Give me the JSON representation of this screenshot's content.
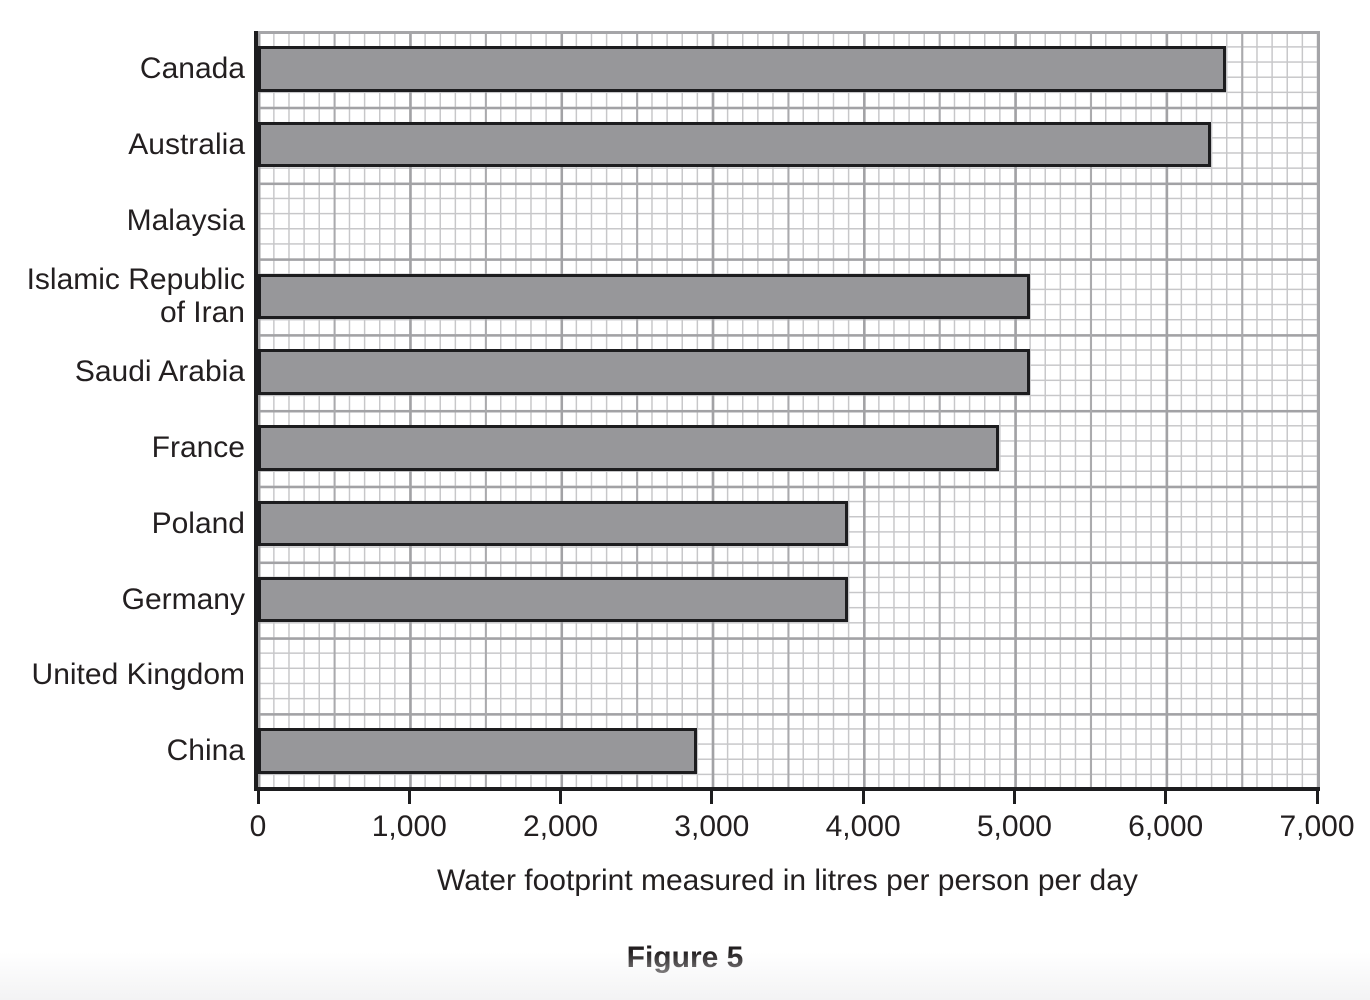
{
  "figure": {
    "caption": "Figure 5"
  },
  "chart_data": {
    "type": "bar",
    "orientation": "horizontal",
    "title": "",
    "xlabel": "Water footprint measured in litres per person per day",
    "ylabel": "",
    "categories": [
      "Canada",
      "Australia",
      "Malaysia",
      "Islamic Republic\nof Iran",
      "Saudi Arabia",
      "France",
      "Poland",
      "Germany",
      "United Kingdom",
      "China"
    ],
    "values": [
      6400,
      6300,
      0,
      5100,
      5100,
      4900,
      3900,
      3900,
      0,
      2900
    ],
    "empty_rows": [
      "Malaysia",
      "United Kingdom"
    ],
    "xlim": [
      0,
      7000
    ],
    "xticks": [
      0,
      1000,
      2000,
      3000,
      4000,
      5000,
      6000,
      7000
    ],
    "xtick_labels": [
      "0",
      "1,000",
      "2,000",
      "3,000",
      "4,000",
      "5,000",
      "6,000",
      "7,000"
    ],
    "grid": "graph paper: fine lines every 100, medium every 500, heavy every 1000; horizontal heavy lines at each category band",
    "legend": null,
    "bar_color": "#97979a",
    "bar_border_color": "#1d1d1f",
    "axis_color": "#1d1d1f",
    "grid_fine_color": "#c7c7c9",
    "grid_heavy_color": "#a2a2a5",
    "text_color": "#231f20"
  }
}
